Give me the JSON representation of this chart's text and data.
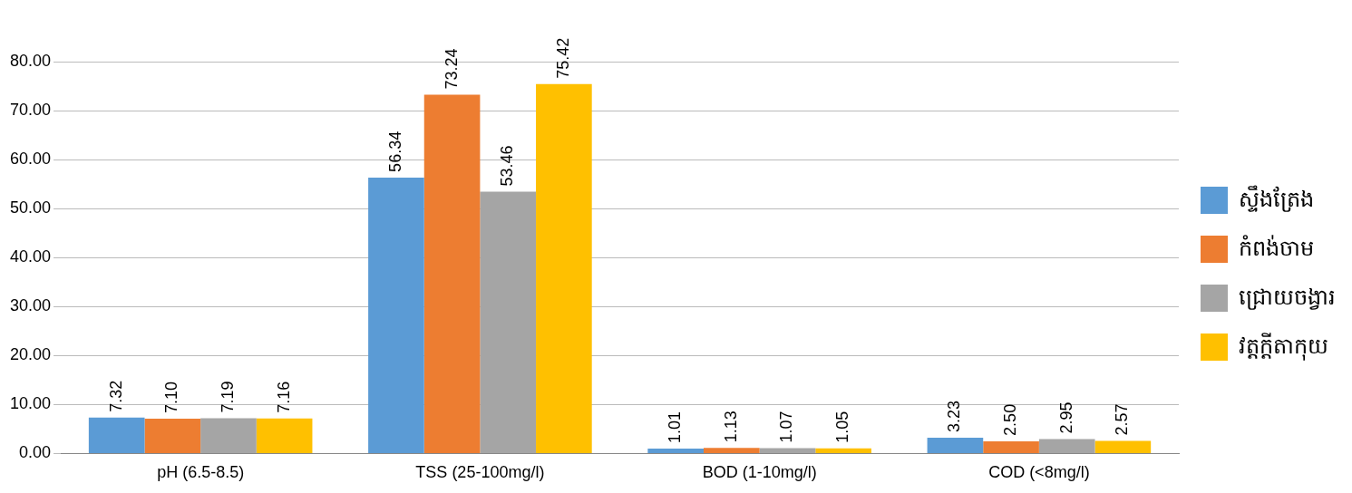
{
  "chart_data": {
    "type": "bar",
    "categories": [
      "pH (6.5-8.5)",
      "TSS (25-100mg/l)",
      "BOD (1-10mg/l)",
      "COD (<8mg/l)"
    ],
    "series": [
      {
        "name": "ស្ទឹងត្រែង",
        "color": "#5b9bd5",
        "values": [
          7.32,
          56.34,
          1.01,
          3.23
        ],
        "value_labels": [
          "7.32",
          "56.34",
          "1.01",
          "3.23"
        ]
      },
      {
        "name": "កំពង់ចាម",
        "color": "#ed7d31",
        "values": [
          7.1,
          73.24,
          1.13,
          2.5
        ],
        "value_labels": [
          "7.10",
          "73.24",
          "1.13",
          "2.50"
        ]
      },
      {
        "name": "ជ្រោយចង្វារ",
        "color": "#a5a5a5",
        "values": [
          7.19,
          53.46,
          1.07,
          2.95
        ],
        "value_labels": [
          "7.19",
          "53.46",
          "1.07",
          "2.95"
        ]
      },
      {
        "name": "វត្តក្តីតាកុយ",
        "color": "#ffc000",
        "values": [
          7.16,
          75.42,
          1.05,
          2.57
        ],
        "value_labels": [
          "7.16",
          "75.42",
          "1.05",
          "2.57"
        ]
      }
    ],
    "ylim": [
      0,
      80
    ],
    "yticks": [
      {
        "value": 0,
        "label": "0.00"
      },
      {
        "value": 10,
        "label": "10.00"
      },
      {
        "value": 20,
        "label": "20.00"
      },
      {
        "value": 30,
        "label": "30.00"
      },
      {
        "value": 40,
        "label": "40.00"
      },
      {
        "value": 50,
        "label": "50.00"
      },
      {
        "value": 60,
        "label": "60.00"
      },
      {
        "value": 70,
        "label": "70.00"
      },
      {
        "value": 80,
        "label": "80.00"
      }
    ],
    "grid": "y",
    "legend": "right"
  }
}
